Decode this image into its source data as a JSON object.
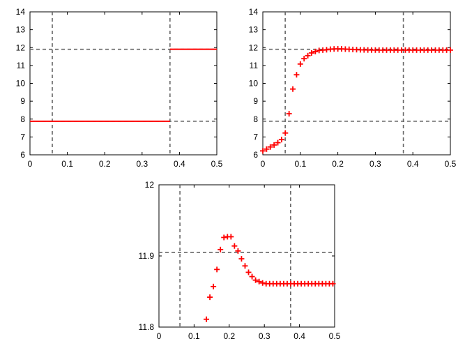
{
  "chart_data": [
    {
      "type": "line",
      "xlim": [
        0,
        0.5
      ],
      "ylim": [
        6,
        14
      ],
      "xticks": [
        "0",
        "0.1",
        "0.2",
        "0.3",
        "0.4",
        "0.5"
      ],
      "yticks": [
        "6",
        "7",
        "8",
        "9",
        "10",
        "11",
        "12",
        "13",
        "14"
      ],
      "grid": false,
      "reference_lines": {
        "vertical": [
          0.0597,
          0.3747
        ],
        "horizontal": [
          11.905,
          7.88
        ]
      },
      "series": [
        {
          "style": "line",
          "color": "#ff0000",
          "segments": [
            [
              [
                0,
                7.88
              ],
              [
                0.3747,
                7.88
              ]
            ],
            [
              [
                0.3747,
                11.905
              ],
              [
                0.5,
                11.905
              ]
            ]
          ]
        }
      ]
    },
    {
      "type": "scatter",
      "xlim": [
        0,
        0.5
      ],
      "ylim": [
        6,
        14
      ],
      "xticks": [
        "0",
        "0.1",
        "0.2",
        "0.3",
        "0.4",
        "0.5"
      ],
      "yticks": [
        "6",
        "7",
        "8",
        "9",
        "10",
        "11",
        "12",
        "13",
        "14"
      ],
      "grid": false,
      "reference_lines": {
        "vertical": [
          0.0597,
          0.3747
        ],
        "horizontal": [
          11.905,
          7.88
        ]
      },
      "series": [
        {
          "marker": "+",
          "color": "#ff0000",
          "x": [
            0,
            0.01,
            0.02,
            0.03,
            0.04,
            0.05,
            0.06,
            0.07,
            0.08,
            0.09,
            0.1,
            0.11,
            0.12,
            0.13,
            0.14,
            0.15,
            0.16,
            0.17,
            0.18,
            0.19,
            0.2,
            0.21,
            0.22,
            0.23,
            0.24,
            0.25,
            0.26,
            0.27,
            0.28,
            0.29,
            0.3,
            0.31,
            0.32,
            0.33,
            0.34,
            0.35,
            0.36,
            0.37,
            0.38,
            0.39,
            0.4,
            0.41,
            0.42,
            0.43,
            0.44,
            0.45,
            0.46,
            0.47,
            0.48,
            0.49,
            0.5
          ],
          "y": [
            6.22,
            6.32,
            6.44,
            6.55,
            6.68,
            6.85,
            7.22,
            8.3,
            9.68,
            10.48,
            11.08,
            11.38,
            11.55,
            11.7,
            11.78,
            11.84,
            11.86,
            11.88,
            11.91,
            11.925,
            11.928,
            11.928,
            11.915,
            11.905,
            11.895,
            11.885,
            11.876,
            11.87,
            11.866,
            11.863,
            11.861,
            11.86,
            11.86,
            11.86,
            11.86,
            11.86,
            11.86,
            11.86,
            11.86,
            11.86,
            11.86,
            11.86,
            11.86,
            11.86,
            11.86,
            11.86,
            11.86,
            11.86,
            11.86,
            11.86,
            11.86
          ]
        }
      ]
    },
    {
      "type": "scatter",
      "xlim": [
        0,
        0.5
      ],
      "ylim": [
        11.8,
        12
      ],
      "xticks": [
        "0",
        "0.1",
        "0.2",
        "0.3",
        "0.4",
        "0.5"
      ],
      "yticks": [
        "11.8",
        "11.9",
        "12"
      ],
      "grid": false,
      "reference_lines": {
        "vertical": [
          0.0597,
          0.3747
        ],
        "horizontal": [
          11.905
        ]
      },
      "series": [
        {
          "marker": "+",
          "color": "#ff0000",
          "x": [
            0.135,
            0.145,
            0.155,
            0.165,
            0.175,
            0.185,
            0.195,
            0.205,
            0.215,
            0.225,
            0.235,
            0.245,
            0.255,
            0.265,
            0.275,
            0.285,
            0.295,
            0.305,
            0.315,
            0.325,
            0.335,
            0.345,
            0.355,
            0.365,
            0.375,
            0.385,
            0.395,
            0.405,
            0.415,
            0.425,
            0.435,
            0.445,
            0.455,
            0.465,
            0.475,
            0.485,
            0.495
          ],
          "y": [
            11.811,
            11.842,
            11.857,
            11.881,
            11.909,
            11.926,
            11.927,
            11.927,
            11.914,
            11.907,
            11.896,
            11.886,
            11.877,
            11.871,
            11.866,
            11.864,
            11.862,
            11.861,
            11.861,
            11.861,
            11.861,
            11.861,
            11.861,
            11.861,
            11.861,
            11.861,
            11.861,
            11.861,
            11.861,
            11.861,
            11.861,
            11.861,
            11.861,
            11.861,
            11.861,
            11.861,
            11.861
          ]
        }
      ]
    }
  ]
}
